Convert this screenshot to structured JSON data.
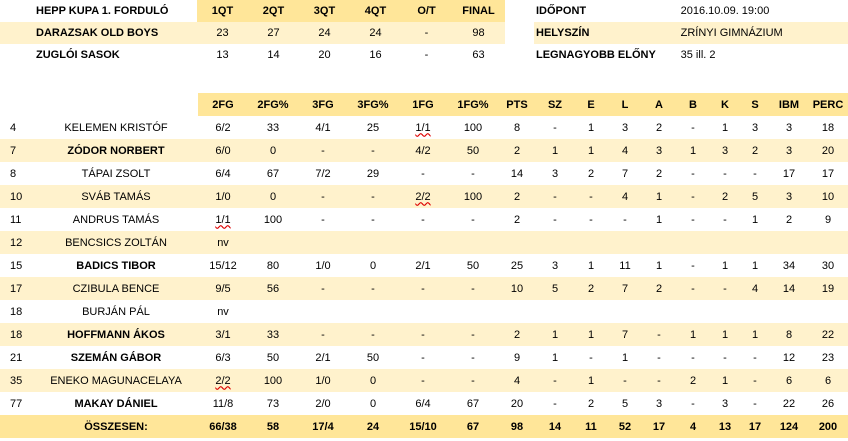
{
  "game": {
    "title": "HEPP KUPA 1. FORDULÓ",
    "quarters": [
      "1QT",
      "2QT",
      "3QT",
      "4QT",
      "O/T",
      "FINAL"
    ],
    "teams": [
      {
        "name": "DARAZSAK OLD BOYS",
        "scores": [
          "23",
          "27",
          "24",
          "24",
          "-",
          "98"
        ]
      },
      {
        "name": "ZUGLÓI SASOK",
        "scores": [
          "13",
          "14",
          "20",
          "16",
          "-",
          "63"
        ]
      }
    ]
  },
  "info": [
    {
      "label": "IDŐPONT",
      "value": "2016.10.09. 19:00"
    },
    {
      "label": "HELYSZÍN",
      "value": "ZRÍNYI GIMNÁZIUM"
    },
    {
      "label": "LEGNAGYOBB ELŐNY",
      "value": "35 ill. 2"
    }
  ],
  "stats": {
    "headers": [
      "2FG",
      "2FG%",
      "3FG",
      "3FG%",
      "1FG",
      "1FG%",
      "PTS",
      "SZ",
      "E",
      "L",
      "A",
      "B",
      "K",
      "S",
      "IBM",
      "PERC"
    ],
    "players": [
      {
        "num": "4",
        "name": "KELEMEN KRISTÓF",
        "vals": [
          "6/2",
          "33",
          "4/1",
          "25",
          "1/1",
          "100",
          "8",
          "-",
          "1",
          "3",
          "2",
          "-",
          "1",
          "3",
          "3",
          "18"
        ]
      },
      {
        "num": "7",
        "name": "ZÓDOR NORBERT",
        "vals": [
          "6/0",
          "0",
          "-",
          "-",
          "4/2",
          "50",
          "2",
          "1",
          "1",
          "4",
          "3",
          "1",
          "3",
          "2",
          "3",
          "20"
        ]
      },
      {
        "num": "8",
        "name": "TÁPAI ZSOLT",
        "vals": [
          "6/4",
          "67",
          "7/2",
          "29",
          "-",
          "-",
          "14",
          "3",
          "2",
          "7",
          "2",
          "-",
          "-",
          "-",
          "17",
          "17"
        ]
      },
      {
        "num": "10",
        "name": "SVÁB TAMÁS",
        "vals": [
          "1/0",
          "0",
          "-",
          "-",
          "2/2",
          "100",
          "2",
          "-",
          "-",
          "4",
          "1",
          "-",
          "2",
          "5",
          "3",
          "10"
        ]
      },
      {
        "num": "11",
        "name": "ANDRUS TAMÁS",
        "vals": [
          "1/1",
          "100",
          "-",
          "-",
          "-",
          "-",
          "2",
          "-",
          "-",
          "-",
          "1",
          "-",
          "-",
          "1",
          "2",
          "9"
        ]
      },
      {
        "num": "12",
        "name": "BENCSICS ZOLTÁN",
        "vals": [
          "nv",
          "",
          "",
          "",
          "",
          "",
          "",
          "",
          "",
          "",
          "",
          "",
          "",
          "",
          "",
          ""
        ]
      },
      {
        "num": "15",
        "name": "BADICS TIBOR",
        "vals": [
          "15/12",
          "80",
          "1/0",
          "0",
          "2/1",
          "50",
          "25",
          "3",
          "1",
          "11",
          "1",
          "-",
          "1",
          "1",
          "34",
          "30"
        ]
      },
      {
        "num": "17",
        "name": "CZIBULA BENCE",
        "vals": [
          "9/5",
          "56",
          "-",
          "-",
          "-",
          "-",
          "10",
          "5",
          "2",
          "7",
          "2",
          "-",
          "-",
          "4",
          "14",
          "19"
        ]
      },
      {
        "num": "18",
        "name": "BURJÁN PÁL",
        "vals": [
          "nv",
          "",
          "",
          "",
          "",
          "",
          "",
          "",
          "",
          "",
          "",
          "",
          "",
          "",
          "",
          ""
        ]
      },
      {
        "num": "18",
        "name": "HOFFMANN ÁKOS",
        "vals": [
          "3/1",
          "33",
          "-",
          "-",
          "-",
          "-",
          "2",
          "1",
          "1",
          "7",
          "-",
          "1",
          "1",
          "1",
          "8",
          "22"
        ]
      },
      {
        "num": "21",
        "name": "SZEMÁN GÁBOR",
        "vals": [
          "6/3",
          "50",
          "2/1",
          "50",
          "-",
          "-",
          "9",
          "1",
          "-",
          "1",
          "-",
          "-",
          "-",
          "-",
          "12",
          "23"
        ]
      },
      {
        "num": "35",
        "name": "ENEKO MAGUNACELAYA",
        "vals": [
          "2/2",
          "100",
          "1/0",
          "0",
          "-",
          "-",
          "4",
          "-",
          "1",
          "-",
          "-",
          "2",
          "1",
          "-",
          "6",
          "6"
        ]
      },
      {
        "num": "77",
        "name": "MAKAY DÁNIEL",
        "vals": [
          "11/8",
          "73",
          "2/0",
          "0",
          "6/4",
          "67",
          "20",
          "-",
          "2",
          "5",
          "3",
          "-",
          "3",
          "-",
          "22",
          "26"
        ]
      }
    ],
    "total": {
      "label": "ÖSSZESEN:",
      "vals": [
        "66/38",
        "58",
        "17/4",
        "24",
        "15/10",
        "67",
        "98",
        "14",
        "11",
        "52",
        "17",
        "4",
        "13",
        "17",
        "124",
        "200"
      ]
    }
  }
}
